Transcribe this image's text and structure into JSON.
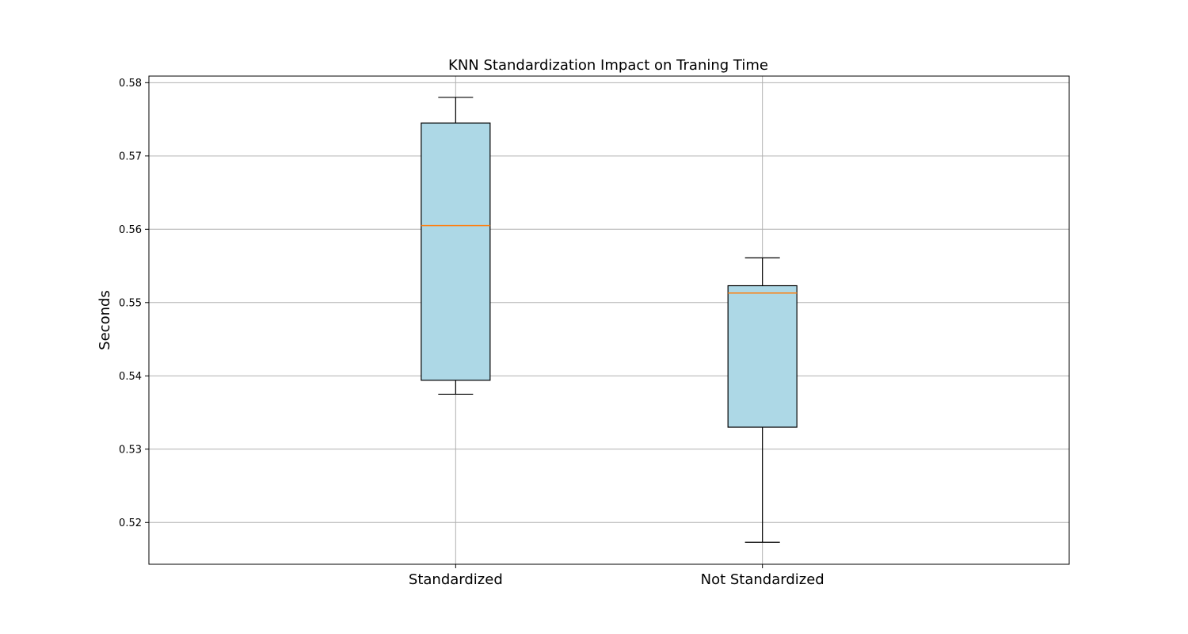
{
  "chart_data": {
    "type": "box",
    "title": "KNN Standardization Impact on Traning Time",
    "xlabel": "",
    "ylabel": "Seconds",
    "categories": [
      "Standardized",
      "Not Standardized"
    ],
    "boxes": [
      {
        "category": "Standardized",
        "whisker_low": 0.5375,
        "q1": 0.5394,
        "median": 0.5605,
        "q3": 0.5745,
        "whisker_high": 0.578
      },
      {
        "category": "Not Standardized",
        "whisker_low": 0.5173,
        "q1": 0.533,
        "median": 0.5513,
        "q3": 0.5523,
        "whisker_high": 0.5561
      }
    ],
    "yticks": [
      "0.52",
      "0.53",
      "0.54",
      "0.55",
      "0.56",
      "0.57",
      "0.58"
    ],
    "ylim": [
      0.5143,
      0.5809
    ],
    "grid": true,
    "colors": {
      "box_fill": "#add8e6",
      "median": "#ff7f0e",
      "grid": "#b0b0b0",
      "edge": "#000000"
    }
  }
}
